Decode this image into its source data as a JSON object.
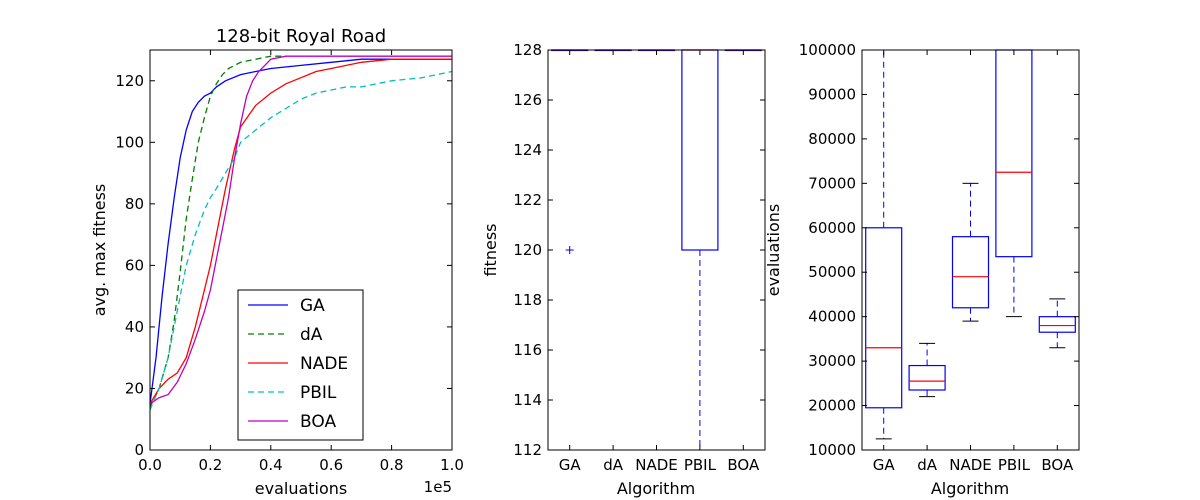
{
  "colors": {
    "GA": "#0000ff",
    "dA": "#008000",
    "NADE": "#ff0000",
    "PBIL": "#00bfbf",
    "BOA": "#bf00bf",
    "box": "#0000ff",
    "median": "#ff0000",
    "axes": "#000000"
  },
  "chart_data": [
    {
      "type": "line",
      "title": "128-bit Royal Road",
      "xlabel": "evaluations",
      "ylabel": "avg. max fitness",
      "x_offset_text": "1e5",
      "xlim": [
        0.0,
        1.0
      ],
      "ylim": [
        0,
        130
      ],
      "xticks": [
        "0.0",
        "0.2",
        "0.4",
        "0.6",
        "0.8",
        "1.0"
      ],
      "yticks": [
        "0",
        "20",
        "40",
        "60",
        "80",
        "100",
        "120"
      ],
      "legend_position": "lower-center",
      "series": [
        {
          "name": "GA",
          "style": "solid",
          "x": [
            0,
            0.02,
            0.04,
            0.06,
            0.08,
            0.1,
            0.12,
            0.14,
            0.16,
            0.18,
            0.2,
            0.22,
            0.25,
            0.3,
            0.35,
            0.4,
            0.5,
            0.6,
            0.7,
            0.8,
            0.9,
            1.0
          ],
          "y": [
            15,
            30,
            50,
            67,
            82,
            95,
            104,
            110,
            113,
            115,
            116,
            118,
            120,
            122,
            123,
            124,
            125,
            126,
            127,
            127,
            127,
            127
          ]
        },
        {
          "name": "dA",
          "style": "dashed",
          "x": [
            0,
            0.03,
            0.06,
            0.08,
            0.1,
            0.12,
            0.14,
            0.16,
            0.18,
            0.2,
            0.22,
            0.24,
            0.26,
            0.28,
            0.3,
            0.35,
            0.4,
            0.45
          ],
          "y": [
            14,
            20,
            30,
            42,
            58,
            75,
            88,
            100,
            108,
            115,
            119,
            122,
            124,
            125,
            126,
            127,
            128,
            128
          ]
        },
        {
          "name": "NADE",
          "style": "solid",
          "x": [
            0,
            0.03,
            0.06,
            0.09,
            0.12,
            0.15,
            0.18,
            0.2,
            0.22,
            0.25,
            0.28,
            0.3,
            0.35,
            0.4,
            0.45,
            0.5,
            0.55,
            0.6,
            0.65,
            0.7,
            0.8,
            0.9,
            1.0
          ],
          "y": [
            15,
            20,
            23,
            25,
            30,
            40,
            52,
            60,
            70,
            85,
            98,
            105,
            112,
            116,
            119,
            121,
            123,
            124,
            125,
            126,
            127,
            127,
            127
          ]
        },
        {
          "name": "PBIL",
          "style": "dashed",
          "x": [
            0,
            0.03,
            0.06,
            0.09,
            0.12,
            0.15,
            0.18,
            0.2,
            0.22,
            0.25,
            0.28,
            0.3,
            0.35,
            0.4,
            0.45,
            0.5,
            0.55,
            0.6,
            0.65,
            0.7,
            0.75,
            0.8,
            0.9,
            0.95,
            1.0
          ],
          "y": [
            13,
            20,
            30,
            45,
            60,
            70,
            78,
            82,
            85,
            90,
            95,
            100,
            104,
            108,
            111,
            114,
            116,
            117,
            118,
            118,
            119,
            120,
            121,
            122,
            123
          ]
        },
        {
          "name": "BOA",
          "style": "solid",
          "x": [
            0,
            0.03,
            0.06,
            0.09,
            0.12,
            0.15,
            0.18,
            0.2,
            0.22,
            0.24,
            0.26,
            0.28,
            0.3,
            0.32,
            0.34,
            0.36,
            0.38,
            0.4,
            0.45,
            0.5,
            0.6,
            0.8,
            1.0
          ],
          "y": [
            15,
            17,
            18,
            22,
            28,
            36,
            45,
            52,
            62,
            72,
            82,
            95,
            106,
            115,
            120,
            123,
            125,
            127,
            128,
            128,
            128,
            128,
            128
          ]
        }
      ]
    },
    {
      "type": "box",
      "xlabel": "Algorithm",
      "ylabel": "fitness",
      "ylim": [
        112,
        128
      ],
      "yticks": [
        "112",
        "114",
        "116",
        "118",
        "120",
        "122",
        "124",
        "126",
        "128"
      ],
      "categories": [
        "GA",
        "dA",
        "NADE",
        "PBIL",
        "BOA"
      ],
      "boxes": [
        {
          "name": "GA",
          "whislo": 128,
          "q1": 128,
          "med": 128,
          "q3": 128,
          "whishi": 128,
          "fliers": [
            120
          ]
        },
        {
          "name": "dA",
          "whislo": 128,
          "q1": 128,
          "med": 128,
          "q3": 128,
          "whishi": 128,
          "fliers": []
        },
        {
          "name": "NADE",
          "whislo": 128,
          "q1": 128,
          "med": 128,
          "q3": 128,
          "whishi": 128,
          "fliers": []
        },
        {
          "name": "PBIL",
          "whislo": 112,
          "q1": 120,
          "med": 128,
          "q3": 128,
          "whishi": 128,
          "fliers": []
        },
        {
          "name": "BOA",
          "whislo": 128,
          "q1": 128,
          "med": 128,
          "q3": 128,
          "whishi": 128,
          "fliers": []
        }
      ]
    },
    {
      "type": "box",
      "xlabel": "Algorithm",
      "ylabel": "evaluations",
      "ylim": [
        10000,
        100000
      ],
      "yticks": [
        "10000",
        "20000",
        "30000",
        "40000",
        "50000",
        "60000",
        "70000",
        "80000",
        "90000",
        "100000"
      ],
      "categories": [
        "GA",
        "dA",
        "NADE",
        "PBIL",
        "BOA"
      ],
      "boxes": [
        {
          "name": "GA",
          "whislo": 12500,
          "q1": 19500,
          "med": 33000,
          "q3": 60000,
          "whishi": 100000,
          "fliers": []
        },
        {
          "name": "dA",
          "whislo": 22000,
          "q1": 23500,
          "med": 25500,
          "q3": 29000,
          "whishi": 34000,
          "fliers": []
        },
        {
          "name": "NADE",
          "whislo": 39000,
          "q1": 42000,
          "med": 49000,
          "q3": 58000,
          "whishi": 70000,
          "fliers": []
        },
        {
          "name": "PBIL",
          "whislo": 40000,
          "q1": 53500,
          "med": 72500,
          "q3": 100000,
          "whishi": 100000,
          "fliers": []
        },
        {
          "name": "BOA",
          "whislo": 33000,
          "q1": 36500,
          "med": 38000,
          "q3": 40000,
          "whishi": 44000,
          "fliers": []
        }
      ]
    }
  ]
}
